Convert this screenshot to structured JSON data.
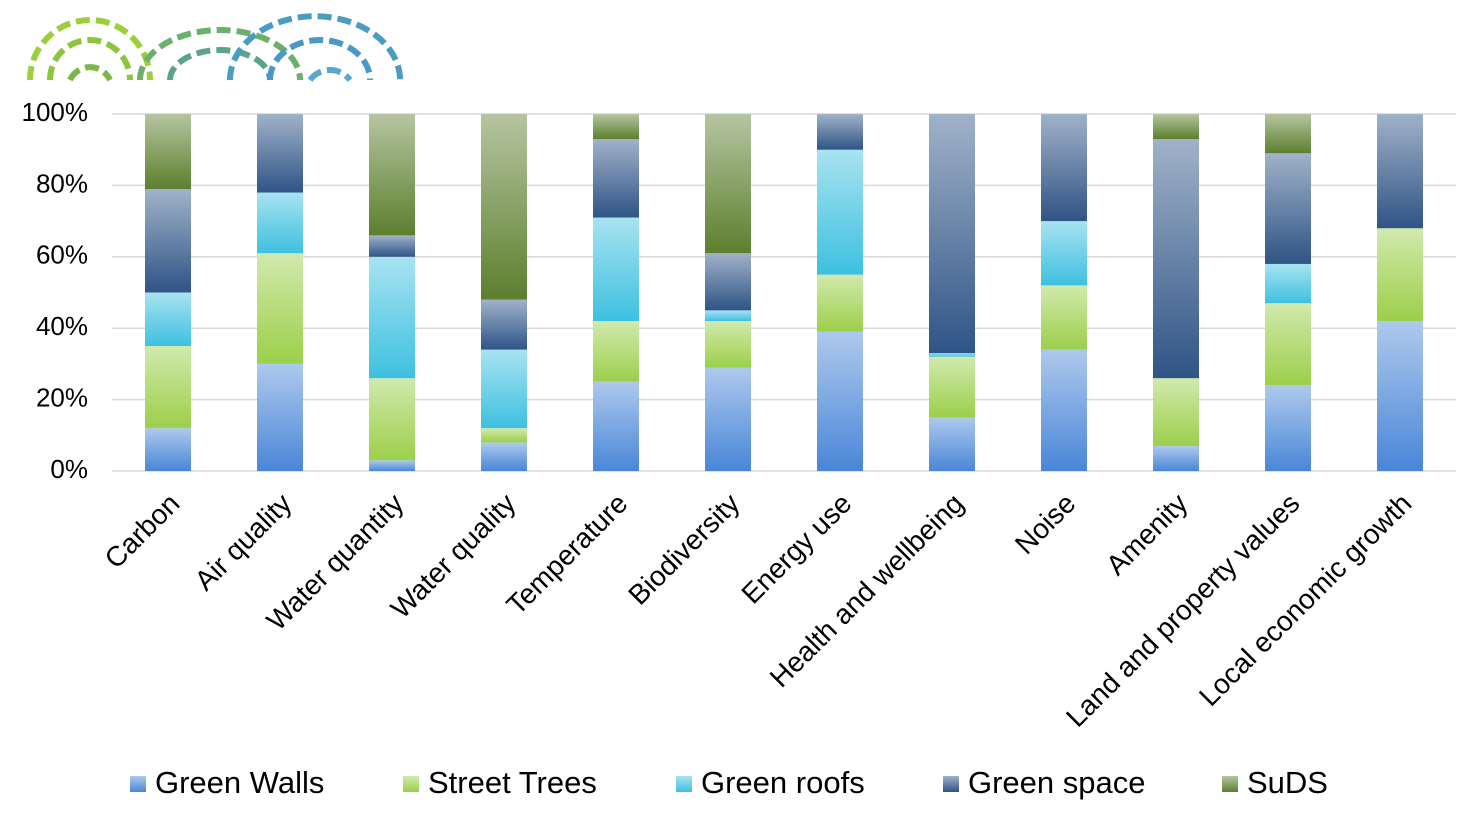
{
  "chart_data": {
    "type": "stacked_bar",
    "categories": [
      "Carbon",
      "Air quality",
      "Water quantity",
      "Water quality",
      "Temperature",
      "Biodiversity",
      "Energy use",
      "Health and wellbeing",
      "Noise",
      "Amenity",
      "Land and property values",
      "Local economic growth"
    ],
    "series": [
      {
        "name": "Green Walls",
        "color": "#4a86d8",
        "values": [
          12,
          30,
          3,
          8,
          25,
          29,
          39,
          15,
          34,
          7,
          24,
          42
        ]
      },
      {
        "name": "Street Trees",
        "color": "#9ccf4a",
        "values": [
          23,
          31,
          23,
          4,
          17,
          13,
          16,
          17,
          18,
          19,
          23,
          26
        ]
      },
      {
        "name": "Green roofs",
        "color": "#3ec0e0",
        "values": [
          15,
          17,
          34,
          22,
          29,
          3,
          35,
          1,
          18,
          0,
          11,
          0
        ]
      },
      {
        "name": "Green space",
        "color": "#2f5486",
        "values": [
          29,
          22,
          6,
          14,
          22,
          16,
          10,
          67,
          30,
          67,
          31,
          32
        ]
      },
      {
        "name": "SuDS",
        "color": "#5d7f2e",
        "values": [
          21,
          0,
          34,
          52,
          7,
          39,
          0,
          0,
          0,
          7,
          11,
          0
        ]
      }
    ],
    "ylim": [
      0,
      100
    ],
    "yticks": [
      {
        "value": 0,
        "label": "0%"
      },
      {
        "value": 20,
        "label": "20%"
      },
      {
        "value": 40,
        "label": "40%"
      },
      {
        "value": 60,
        "label": "60%"
      },
      {
        "value": 80,
        "label": "80%"
      },
      {
        "value": 100,
        "label": "100%"
      }
    ],
    "grid": true,
    "legend": "bottom"
  }
}
